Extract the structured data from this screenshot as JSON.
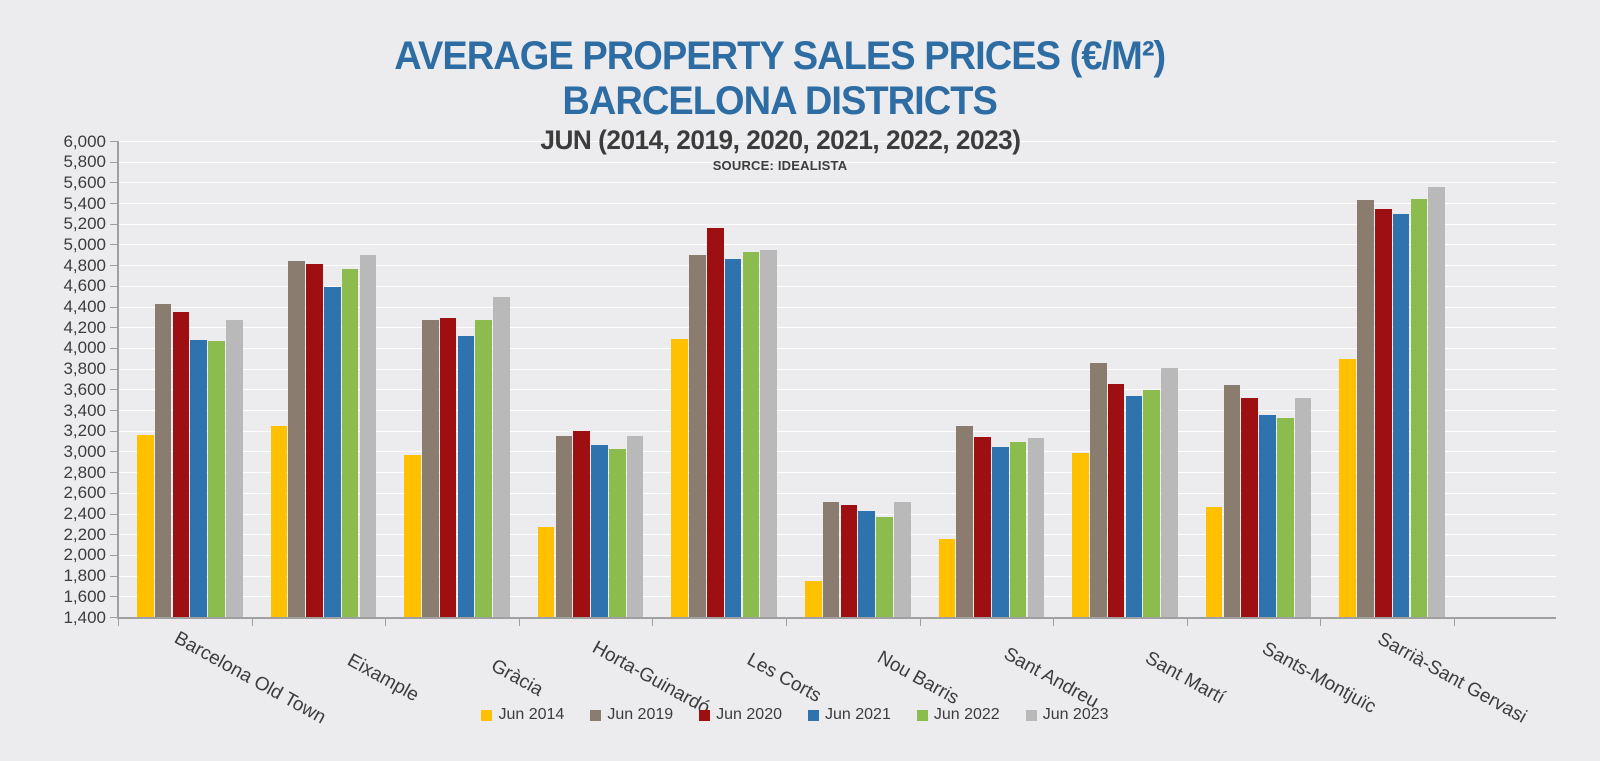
{
  "title": {
    "line1": "AVERAGE PROPERTY SALES PRICES (€/M²)",
    "line2": "BARCELONA DISTRICTS",
    "line3": "JUN (2014, 2019, 2020, 2021, 2022, 2023)",
    "source": "SOURCE: IDEALISTA"
  },
  "colors": {
    "background": "#ECECEE",
    "gridline": "#FFFFFF",
    "axis": "#A0A0A0",
    "title_blue": "#2D6DA3",
    "text_dark": "#3C3C3C"
  },
  "chart_data": {
    "type": "bar",
    "title": "AVERAGE PROPERTY SALES PRICES (€/M²) — BARCELONA DISTRICTS — JUN (2014, 2019, 2020, 2021, 2022, 2023)",
    "source": "SOURCE: IDEALISTA",
    "xlabel": "",
    "ylabel": "",
    "ylim": [
      1400,
      6000
    ],
    "ytick_step": 200,
    "grid": true,
    "legend_position": "bottom",
    "categories": [
      "Barcelona Old Town",
      "Eixample",
      "Gràcia",
      "Horta-Guinardó",
      "Les Corts",
      "Nou Barris",
      "Sant Andreu",
      "Sant Martí",
      "Sants-Montjuïc",
      "Sarrià-Sant Gervasi"
    ],
    "series": [
      {
        "name": "Jun 2014",
        "color": "#FFC000",
        "values": [
          3160,
          3245,
          2965,
          2270,
          4085,
          1745,
          2155,
          2985,
          2460,
          3890
        ]
      },
      {
        "name": "Jun 2019",
        "color": "#8A7D6F",
        "values": [
          4425,
          4840,
          4275,
          3150,
          4895,
          2515,
          3245,
          3850,
          3640,
          5430
        ]
      },
      {
        "name": "Jun 2020",
        "color": "#9E0F12",
        "values": [
          4345,
          4815,
          4285,
          3195,
          5160,
          2480,
          3140,
          3650,
          3515,
          5345
        ]
      },
      {
        "name": "Jun 2021",
        "color": "#2E73AE",
        "values": [
          4080,
          4590,
          4120,
          3065,
          4855,
          2420,
          3040,
          3540,
          3350,
          5290
        ]
      },
      {
        "name": "Jun 2022",
        "color": "#8CBB4E",
        "values": [
          4070,
          4760,
          4270,
          3025,
          4930,
          2370,
          3090,
          3595,
          3325,
          5440
        ]
      },
      {
        "name": "Jun 2023",
        "color": "#B9B9B9",
        "values": [
          4270,
          4895,
          4490,
          3145,
          4950,
          2510,
          3130,
          3805,
          3520,
          5555
        ]
      }
    ]
  }
}
